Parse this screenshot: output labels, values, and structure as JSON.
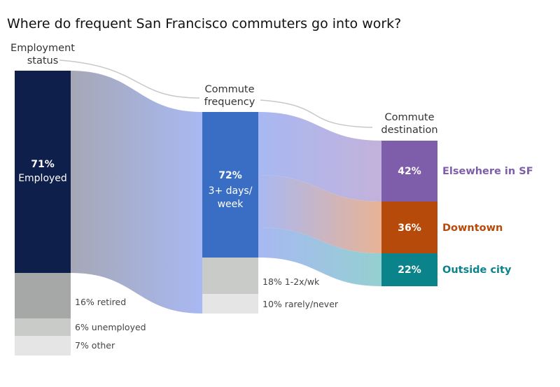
{
  "title": "Where do frequent San Francisco commuters go into work?",
  "stages": {
    "employment": {
      "line1": "Employment",
      "line2": "status"
    },
    "frequency": {
      "line1": "Commute",
      "line2": "frequency"
    },
    "destination": {
      "line1": "Commute",
      "line2": "destination"
    }
  },
  "chart_data": {
    "type": "sankey",
    "title": "Where do frequent San Francisco commuters go into work?",
    "columns": [
      {
        "name": "Employment status",
        "nodes": [
          {
            "pct": "71%",
            "label": "Employed",
            "value": 71,
            "color": "#0f1f4b",
            "text": "71% Employed"
          },
          {
            "label": "16% retired",
            "value": 16,
            "color": "#a6a8a8"
          },
          {
            "label": "6% unemployed",
            "value": 6,
            "color": "#c9cbc9"
          },
          {
            "label": "7% other",
            "value": 7,
            "color": "#e4e5e4"
          }
        ]
      },
      {
        "name": "Commute frequency",
        "nodes": [
          {
            "pct": "72%",
            "label": "3+ days/ week",
            "value": 72,
            "color": "#3a6ec5"
          },
          {
            "label": "18% 1-2x/wk",
            "value": 18,
            "color": "#c9cbc9"
          },
          {
            "label": "10% rarely/never",
            "value": 10,
            "color": "#e4e5e4"
          }
        ]
      },
      {
        "name": "Commute destination",
        "nodes": [
          {
            "pct": "42%",
            "label": "Elsewhere in SF",
            "value": 42,
            "color": "#7e5eaa"
          },
          {
            "pct": "36%",
            "label": "Downtown",
            "value": 36,
            "color": "#b64a0a"
          },
          {
            "pct": "22%",
            "label": "Outside city",
            "value": 22,
            "color": "#0b838a"
          }
        ]
      }
    ],
    "flows": [
      {
        "from": "Employed",
        "to": "3+ days/ week",
        "value": 71
      },
      {
        "from": "3+ days/ week",
        "to": "Elsewhere in SF",
        "value": 42
      },
      {
        "from": "3+ days/ week",
        "to": "Downtown",
        "value": 36
      },
      {
        "from": "3+ days/ week",
        "to": "Outside city",
        "value": 22
      }
    ],
    "colors": {
      "employed": "#0f1f4b",
      "frequent": "#3a6ec5",
      "flow_blue": "#a8b8f2",
      "flow_gray": "#a6a8a8",
      "elsewhere": "#7e5eaa",
      "downtown": "#b64a0a",
      "outside": "#0b838a"
    }
  }
}
